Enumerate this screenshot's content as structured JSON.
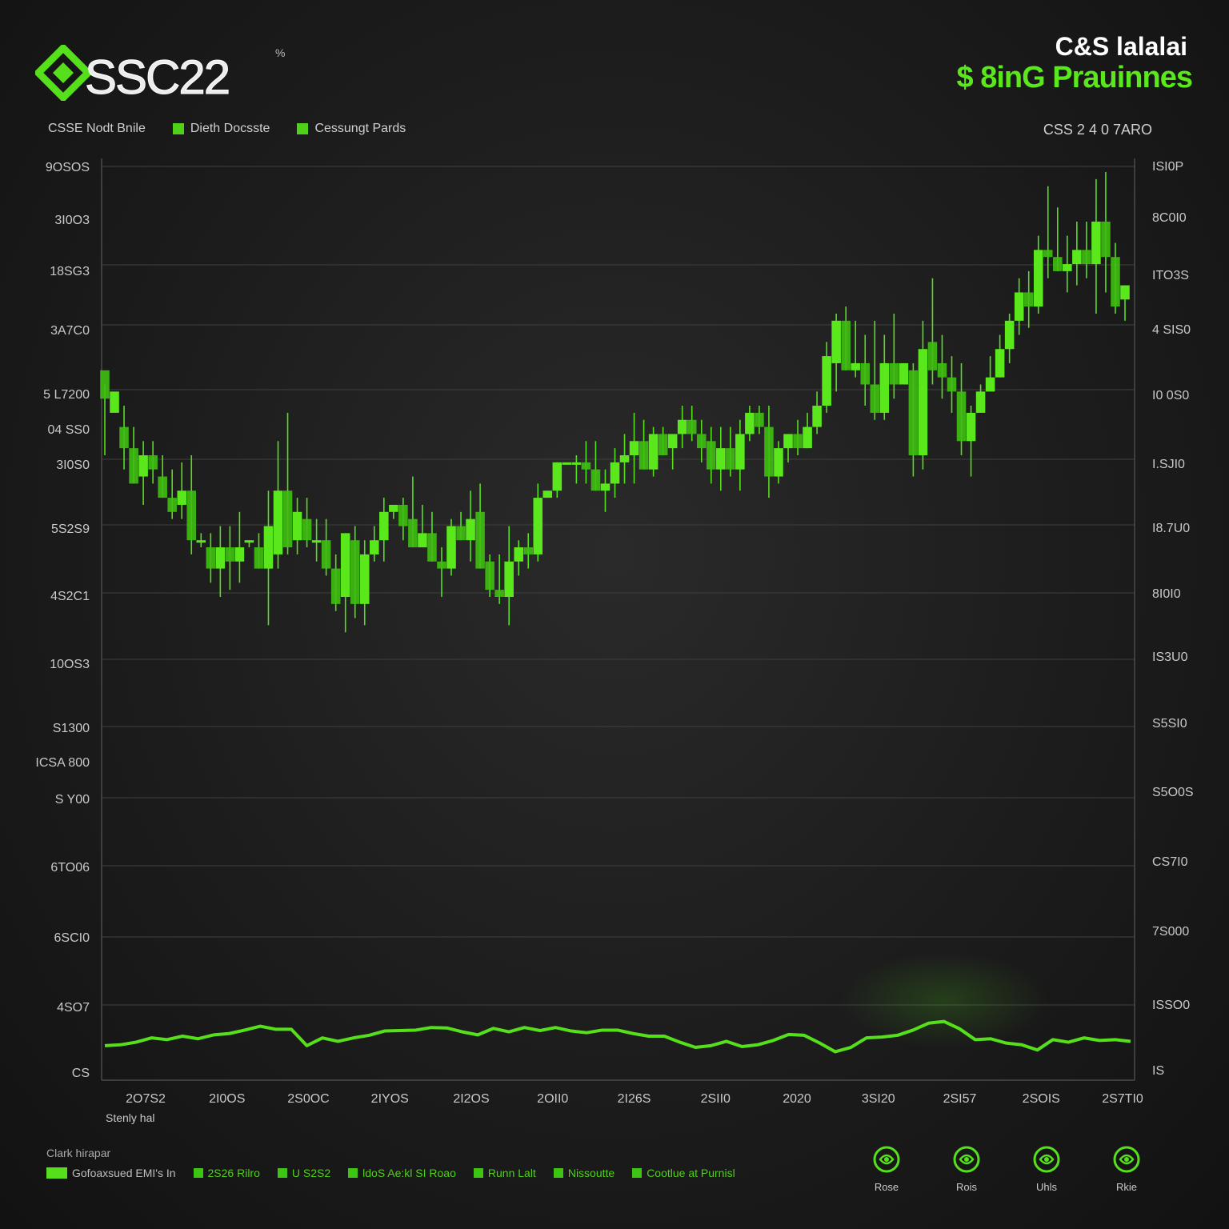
{
  "header": {
    "logo_text": "SSC22",
    "logo_sup": "%",
    "title": "C&S lalalai",
    "subtitle": "$ 8inG Prauinnes"
  },
  "legend_top": {
    "item1": "CSSE Nodt Bnile",
    "item2": "Dieth Docsste",
    "item3": "Cessungt Pards"
  },
  "ticker": "CSS 2 4 0 7ARO",
  "x_caption": "Stenly hal",
  "bottom_legend": {
    "title": "Clark hirapar",
    "items": [
      "Gofoaxsued EMI's In",
      "2S26 Rilro",
      "U S2S2",
      "ldoS Ae:kl SI Roao",
      "Runn Lalt",
      "Nissoutte",
      "Cootlue at Purnisl"
    ]
  },
  "icons": [
    {
      "name": "rose-icon",
      "label": "Rose"
    },
    {
      "name": "rose-icon",
      "label": "Rois"
    },
    {
      "name": "rose-icon",
      "label": "Uhls"
    },
    {
      "name": "rose-icon",
      "label": "Rkie"
    }
  ],
  "colors": {
    "accent": "#56e01c",
    "background": "#1c1c1c",
    "grid": "#3a3a3a",
    "text": "#cfcfcf"
  },
  "chart_data": {
    "type": "candlestick",
    "title": "C&S lalalai",
    "subtitle": "$ 8inG Prauinnes",
    "grid": true,
    "left_ticks": [
      "9OSOS",
      "3I0O3",
      "18SG3",
      "3A7C0",
      "5 L7200",
      "04 SS0",
      "3I0S0",
      "5S2S9",
      "4S2C1",
      "10OS3",
      "S1300",
      "ICSA 800",
      "S Y00",
      "6TO06",
      "6SCI0",
      "4SO7",
      "CS"
    ],
    "right_ticks": [
      "ISI0P",
      "8C0I0",
      "ITO3S",
      "4 SIS0",
      "I0 0S0",
      "I.SJI0",
      "I8.7U0",
      "8I0I0",
      "IS3U0",
      "S5SI0",
      "S5O0S",
      "CS7I0",
      "7S000",
      "ISSO0",
      "IS"
    ],
    "x_ticks": [
      "2O7S2",
      "2I0OS",
      "2S0OC",
      "2IYOS",
      "2I2OS",
      "2OII0",
      "2I26S",
      "2SII0",
      "2020",
      "3SI20",
      "2SI57",
      "2SOIS",
      "2S7TI0"
    ],
    "candles": [
      [
        0.72,
        0.68,
        0.7,
        0.6
      ],
      [
        0.66,
        0.69,
        0.66,
        0.66
      ],
      [
        0.64,
        0.61,
        0.67,
        0.58
      ],
      [
        0.61,
        0.56,
        0.64,
        0.56
      ],
      [
        0.57,
        0.6,
        0.62,
        0.53
      ],
      [
        0.6,
        0.58,
        0.62,
        0.56
      ],
      [
        0.57,
        0.54,
        0.6,
        0.54
      ],
      [
        0.54,
        0.52,
        0.58,
        0.51
      ],
      [
        0.53,
        0.55,
        0.59,
        0.51
      ],
      [
        0.55,
        0.48,
        0.6,
        0.46
      ],
      [
        0.48,
        0.48,
        0.49,
        0.47
      ],
      [
        0.47,
        0.44,
        0.49,
        0.42
      ],
      [
        0.44,
        0.47,
        0.5,
        0.4
      ],
      [
        0.47,
        0.45,
        0.5,
        0.41
      ],
      [
        0.45,
        0.47,
        0.52,
        0.42
      ],
      [
        0.48,
        0.48,
        0.48,
        0.47
      ],
      [
        0.47,
        0.44,
        0.49,
        0.44
      ],
      [
        0.44,
        0.5,
        0.55,
        0.36
      ],
      [
        0.46,
        0.55,
        0.62,
        0.44
      ],
      [
        0.55,
        0.47,
        0.66,
        0.46
      ],
      [
        0.48,
        0.52,
        0.54,
        0.46
      ],
      [
        0.51,
        0.48,
        0.54,
        0.47
      ],
      [
        0.48,
        0.48,
        0.51,
        0.45
      ],
      [
        0.48,
        0.44,
        0.51,
        0.43
      ],
      [
        0.44,
        0.39,
        0.46,
        0.38
      ],
      [
        0.4,
        0.49,
        0.49,
        0.35
      ],
      [
        0.48,
        0.39,
        0.5,
        0.37
      ],
      [
        0.39,
        0.46,
        0.48,
        0.36
      ],
      [
        0.46,
        0.48,
        0.5,
        0.45
      ],
      [
        0.48,
        0.52,
        0.54,
        0.45
      ],
      [
        0.52,
        0.53,
        0.53,
        0.51
      ],
      [
        0.53,
        0.5,
        0.54,
        0.48
      ],
      [
        0.51,
        0.47,
        0.57,
        0.47
      ],
      [
        0.47,
        0.49,
        0.53,
        0.47
      ],
      [
        0.49,
        0.45,
        0.52,
        0.45
      ],
      [
        0.45,
        0.44,
        0.47,
        0.4
      ],
      [
        0.44,
        0.5,
        0.51,
        0.43
      ],
      [
        0.5,
        0.48,
        0.52,
        0.48
      ],
      [
        0.48,
        0.51,
        0.55,
        0.45
      ],
      [
        0.52,
        0.44,
        0.56,
        0.44
      ],
      [
        0.45,
        0.41,
        0.46,
        0.4
      ],
      [
        0.41,
        0.4,
        0.46,
        0.39
      ],
      [
        0.4,
        0.45,
        0.5,
        0.36
      ],
      [
        0.45,
        0.47,
        0.48,
        0.43
      ],
      [
        0.47,
        0.46,
        0.49,
        0.44
      ],
      [
        0.46,
        0.54,
        0.56,
        0.45
      ],
      [
        0.54,
        0.55,
        0.55,
        0.54
      ],
      [
        0.55,
        0.59,
        0.59,
        0.54
      ],
      [
        0.59,
        0.59,
        0.59,
        0.59
      ],
      [
        0.59,
        0.59,
        0.6,
        0.56
      ],
      [
        0.59,
        0.58,
        0.62,
        0.56
      ],
      [
        0.58,
        0.55,
        0.62,
        0.55
      ],
      [
        0.55,
        0.56,
        0.58,
        0.52
      ],
      [
        0.56,
        0.59,
        0.61,
        0.54
      ],
      [
        0.59,
        0.6,
        0.63,
        0.56
      ],
      [
        0.6,
        0.62,
        0.66,
        0.56
      ],
      [
        0.62,
        0.58,
        0.65,
        0.58
      ],
      [
        0.58,
        0.63,
        0.64,
        0.57
      ],
      [
        0.63,
        0.6,
        0.64,
        0.6
      ],
      [
        0.61,
        0.63,
        0.63,
        0.58
      ],
      [
        0.63,
        0.65,
        0.67,
        0.61
      ],
      [
        0.65,
        0.63,
        0.67,
        0.62
      ],
      [
        0.63,
        0.61,
        0.65,
        0.59
      ],
      [
        0.62,
        0.58,
        0.64,
        0.56
      ],
      [
        0.58,
        0.61,
        0.64,
        0.55
      ],
      [
        0.61,
        0.58,
        0.64,
        0.57
      ],
      [
        0.58,
        0.63,
        0.65,
        0.55
      ],
      [
        0.63,
        0.66,
        0.67,
        0.62
      ],
      [
        0.66,
        0.64,
        0.67,
        0.63
      ],
      [
        0.64,
        0.57,
        0.67,
        0.54
      ],
      [
        0.57,
        0.61,
        0.62,
        0.56
      ],
      [
        0.61,
        0.63,
        0.63,
        0.59
      ],
      [
        0.63,
        0.61,
        0.65,
        0.6
      ],
      [
        0.61,
        0.64,
        0.66,
        0.61
      ],
      [
        0.64,
        0.67,
        0.69,
        0.63
      ],
      [
        0.67,
        0.74,
        0.76,
        0.66
      ],
      [
        0.73,
        0.79,
        0.8,
        0.69
      ],
      [
        0.79,
        0.72,
        0.81,
        0.72
      ],
      [
        0.72,
        0.73,
        0.79,
        0.71
      ],
      [
        0.73,
        0.7,
        0.77,
        0.67
      ],
      [
        0.7,
        0.66,
        0.79,
        0.65
      ],
      [
        0.66,
        0.73,
        0.77,
        0.65
      ],
      [
        0.73,
        0.7,
        0.8,
        0.68
      ],
      [
        0.7,
        0.73,
        0.72,
        0.7
      ],
      [
        0.72,
        0.6,
        0.73,
        0.57
      ],
      [
        0.6,
        0.75,
        0.79,
        0.58
      ],
      [
        0.76,
        0.72,
        0.85,
        0.7
      ],
      [
        0.73,
        0.71,
        0.77,
        0.68
      ],
      [
        0.71,
        0.69,
        0.74,
        0.66
      ],
      [
        0.69,
        0.62,
        0.73,
        0.6
      ],
      [
        0.62,
        0.66,
        0.67,
        0.57
      ],
      [
        0.66,
        0.69,
        0.7,
        0.66
      ],
      [
        0.69,
        0.71,
        0.74,
        0.7
      ],
      [
        0.71,
        0.75,
        0.77,
        0.71
      ],
      [
        0.75,
        0.79,
        0.8,
        0.73
      ],
      [
        0.79,
        0.83,
        0.85,
        0.77
      ],
      [
        0.83,
        0.81,
        0.86,
        0.78
      ],
      [
        0.81,
        0.89,
        0.91,
        0.8
      ],
      [
        0.89,
        0.88,
        0.98,
        0.85
      ],
      [
        0.88,
        0.86,
        0.95,
        0.86
      ],
      [
        0.86,
        0.87,
        0.91,
        0.83
      ],
      [
        0.87,
        0.89,
        0.93,
        0.84
      ],
      [
        0.89,
        0.87,
        0.93,
        0.85
      ],
      [
        0.87,
        0.93,
        0.99,
        0.8
      ],
      [
        0.93,
        0.88,
        1.0,
        0.83
      ],
      [
        0.88,
        0.81,
        0.9,
        0.8
      ],
      [
        0.82,
        0.84,
        0.84,
        0.79
      ]
    ],
    "volume_line": [
      0.28,
      0.3,
      0.36,
      0.46,
      0.42,
      0.5,
      0.44,
      0.53,
      0.56,
      0.64,
      0.73,
      0.66,
      0.66,
      0.28,
      0.46,
      0.38,
      0.46,
      0.52,
      0.62,
      0.63,
      0.64,
      0.7,
      0.69,
      0.6,
      0.53,
      0.68,
      0.6,
      0.7,
      0.63,
      0.7,
      0.62,
      0.58,
      0.64,
      0.64,
      0.56,
      0.5,
      0.5,
      0.36,
      0.24,
      0.28,
      0.38,
      0.26,
      0.3,
      0.4,
      0.54,
      0.52,
      0.34,
      0.14,
      0.24,
      0.46,
      0.48,
      0.52,
      0.64,
      0.8,
      0.84,
      0.67,
      0.42,
      0.44,
      0.34,
      0.3,
      0.18,
      0.42,
      0.36,
      0.46,
      0.4,
      0.42,
      0.38
    ]
  }
}
